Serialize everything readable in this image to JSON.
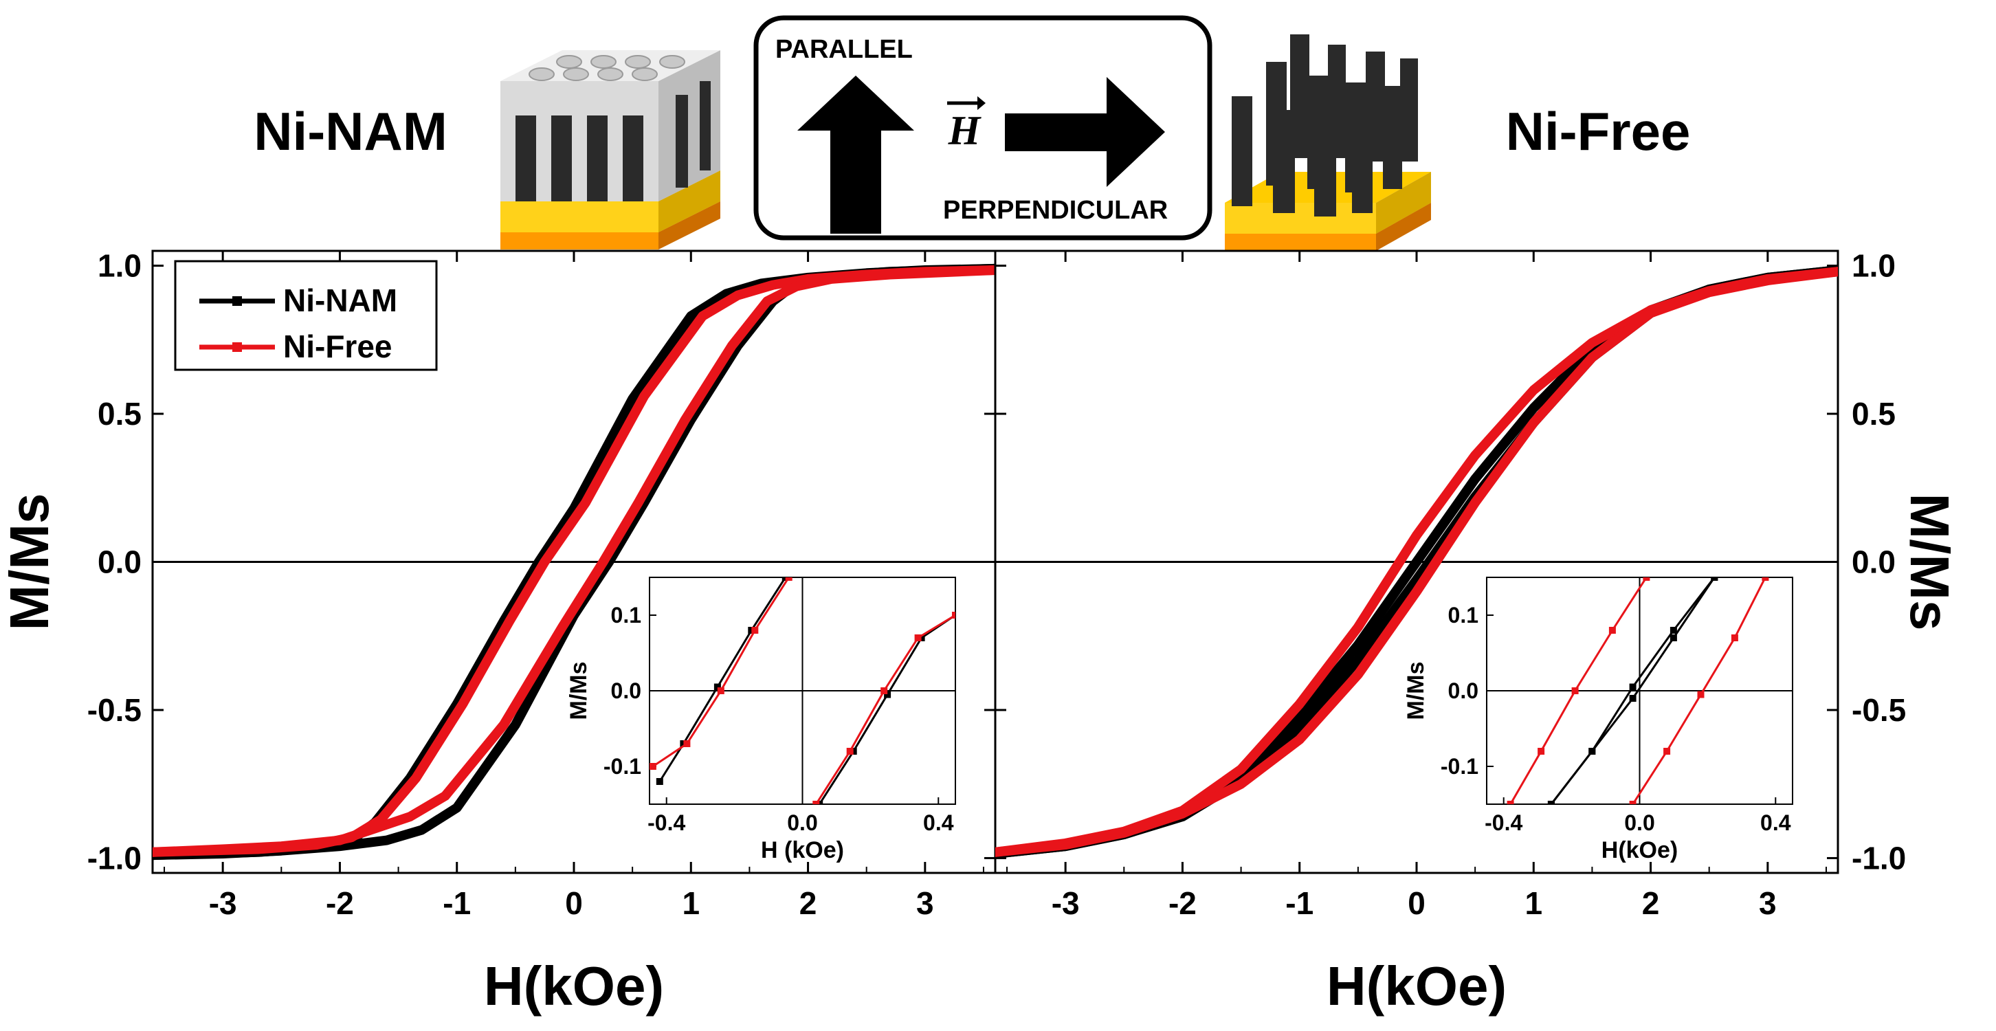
{
  "header": {
    "sample_left": "Ni-NAM",
    "sample_right": "Ni-Free",
    "arrow_parallel_label": "PARALLEL",
    "arrow_perpendicular_label": "PERPENDICULAR",
    "field_symbol": "H"
  },
  "colors": {
    "ni_nam": "#000000",
    "ni_free": "#e8141a",
    "membrane_white": "#d9d9d9",
    "nanowire_black": "#2a2a2a",
    "substrate_gold": "#ffcc00",
    "substrate_orange": "#ff8c00"
  },
  "legend": {
    "placement": "top-left of left panel",
    "entries": [
      "Ni-NAM",
      "Ni-Free"
    ]
  },
  "chart_data": [
    {
      "type": "line",
      "panel": "parallel",
      "xlabel": "H(kOe)",
      "ylabel": "M/Ms",
      "ylabel_side": "left",
      "xlim": [
        -3.6,
        3.6
      ],
      "ylim": [
        -1.05,
        1.05
      ],
      "x_ticks": [
        -3,
        -2,
        -1,
        0,
        1,
        2,
        3
      ],
      "y_ticks": [
        -1.0,
        -0.5,
        0.0,
        0.5,
        1.0
      ],
      "y_tick_labels": [
        "-1.0",
        "-0.5",
        "0.0",
        "0.5",
        "1.0"
      ],
      "series": [
        {
          "name": "Ni-NAM",
          "branches": [
            {
              "x": [
                3.6,
                3.0,
                2.5,
                2.0,
                1.6,
                1.3,
                1.0,
                0.5,
                0.0,
                -0.3,
                -0.6,
                -1.0,
                -1.4,
                -1.7,
                -1.9,
                -2.2,
                -2.7,
                -3.6
              ],
              "y": [
                0.99,
                0.985,
                0.975,
                0.96,
                0.94,
                0.905,
                0.83,
                0.55,
                0.18,
                0.0,
                -0.2,
                -0.48,
                -0.73,
                -0.88,
                -0.94,
                -0.965,
                -0.98,
                -0.99
              ]
            },
            {
              "x": [
                -3.6,
                -3.0,
                -2.5,
                -2.0,
                -1.6,
                -1.3,
                -1.0,
                -0.5,
                0.0,
                0.3,
                0.6,
                1.0,
                1.4,
                1.7,
                1.9,
                2.2,
                2.7,
                3.6
              ],
              "y": [
                -0.99,
                -0.985,
                -0.975,
                -0.96,
                -0.94,
                -0.905,
                -0.83,
                -0.55,
                -0.18,
                0.0,
                0.2,
                0.48,
                0.73,
                0.88,
                0.94,
                0.965,
                0.98,
                0.99
              ]
            }
          ]
        },
        {
          "name": "Ni-Free",
          "branches": [
            {
              "x": [
                3.6,
                3.0,
                2.5,
                2.0,
                1.7,
                1.4,
                1.1,
                0.6,
                0.1,
                -0.25,
                -0.55,
                -0.95,
                -1.35,
                -1.65,
                -1.9,
                -2.2,
                -2.7,
                -3.6
              ],
              "y": [
                0.985,
                0.98,
                0.97,
                0.955,
                0.935,
                0.9,
                0.83,
                0.56,
                0.2,
                0.0,
                -0.2,
                -0.48,
                -0.73,
                -0.87,
                -0.93,
                -0.955,
                -0.97,
                -0.98
              ]
            },
            {
              "x": [
                -3.6,
                -3.0,
                -2.5,
                -2.0,
                -1.7,
                -1.4,
                -1.1,
                -0.6,
                -0.1,
                0.25,
                0.55,
                0.95,
                1.35,
                1.65,
                1.9,
                2.2,
                2.7,
                3.6
              ],
              "y": [
                -0.98,
                -0.97,
                -0.96,
                -0.94,
                -0.9,
                -0.86,
                -0.79,
                -0.55,
                -0.22,
                0.0,
                0.2,
                0.48,
                0.73,
                0.88,
                0.93,
                0.955,
                0.97,
                0.985
              ]
            }
          ]
        }
      ],
      "inset": {
        "xlabel": "H (kOe)",
        "ylabel": "M/Ms",
        "xlim": [
          -0.45,
          0.45
        ],
        "ylim": [
          -0.15,
          0.15
        ],
        "x_ticks": [
          -0.4,
          0.0,
          0.4
        ],
        "x_tick_labels": [
          "-0.4",
          "0.0",
          "0.4"
        ],
        "y_ticks": [
          -0.1,
          0.0,
          0.1
        ],
        "y_tick_labels": [
          "-0.1",
          "0.0",
          "0.1"
        ],
        "series": [
          {
            "name": "Ni-NAM",
            "branches": [
              {
                "x": [
                  -0.05,
                  -0.15,
                  -0.25,
                  -0.35,
                  -0.42
                ],
                "y": [
                  0.15,
                  0.08,
                  0.005,
                  -0.07,
                  -0.12
                ]
              },
              {
                "x": [
                  0.05,
                  0.15,
                  0.25,
                  0.35,
                  0.45
                ],
                "y": [
                  -0.15,
                  -0.08,
                  -0.005,
                  0.07,
                  0.1
                ]
              }
            ]
          },
          {
            "name": "Ni-Free",
            "branches": [
              {
                "x": [
                  -0.04,
                  -0.14,
                  -0.24,
                  -0.34,
                  -0.44
                ],
                "y": [
                  0.15,
                  0.08,
                  0.0,
                  -0.07,
                  -0.1
                ]
              },
              {
                "x": [
                  0.04,
                  0.14,
                  0.24,
                  0.34,
                  0.45
                ],
                "y": [
                  -0.15,
                  -0.08,
                  0.0,
                  0.07,
                  0.1
                ]
              }
            ]
          }
        ]
      }
    },
    {
      "type": "line",
      "panel": "perpendicular",
      "xlabel": "H(kOe)",
      "ylabel": "M/Ms",
      "ylabel_side": "right",
      "xlim": [
        -3.6,
        3.6
      ],
      "ylim": [
        -1.05,
        1.05
      ],
      "x_ticks": [
        -3,
        -2,
        -1,
        0,
        1,
        2,
        3
      ],
      "y_ticks": [
        -1.0,
        -0.5,
        0.0,
        0.5,
        1.0
      ],
      "y_tick_labels": [
        "-1.0",
        "-0.5",
        "0.0",
        "0.5",
        "1.0"
      ],
      "series": [
        {
          "name": "Ni-NAM",
          "branches": [
            {
              "x": [
                3.6,
                3.0,
                2.5,
                2.0,
                1.5,
                1.0,
                0.5,
                0.0,
                -0.5,
                -1.0,
                -1.5,
                -2.0,
                -2.5,
                -3.0,
                -3.6
              ],
              "y": [
                0.985,
                0.96,
                0.92,
                0.85,
                0.72,
                0.52,
                0.28,
                0.0,
                -0.28,
                -0.52,
                -0.72,
                -0.85,
                -0.92,
                -0.96,
                -0.985
              ]
            },
            {
              "x": [
                -3.6,
                -3.0,
                -2.5,
                -2.0,
                -1.5,
                -1.0,
                -0.5,
                0.0,
                0.5,
                1.0,
                1.5,
                2.0,
                2.5,
                3.0,
                3.6
              ],
              "y": [
                -0.985,
                -0.96,
                -0.92,
                -0.86,
                -0.74,
                -0.56,
                -0.33,
                -0.06,
                0.22,
                0.47,
                0.69,
                0.84,
                0.92,
                0.96,
                0.985
              ]
            }
          ]
        },
        {
          "name": "Ni-Free",
          "branches": [
            {
              "x": [
                3.6,
                3.0,
                2.5,
                2.0,
                1.5,
                1.0,
                0.5,
                0.0,
                -0.5,
                -1.0,
                -1.5,
                -2.0,
                -2.5,
                -3.0,
                -3.6
              ],
              "y": [
                0.98,
                0.955,
                0.915,
                0.85,
                0.74,
                0.58,
                0.36,
                0.09,
                -0.22,
                -0.48,
                -0.7,
                -0.84,
                -0.91,
                -0.95,
                -0.98
              ]
            },
            {
              "x": [
                -3.6,
                -3.0,
                -2.5,
                -2.0,
                -1.5,
                -1.0,
                -0.5,
                0.0,
                0.5,
                1.0,
                1.5,
                2.0,
                2.5,
                3.0,
                3.6
              ],
              "y": [
                -0.98,
                -0.955,
                -0.915,
                -0.85,
                -0.75,
                -0.6,
                -0.38,
                -0.1,
                0.2,
                0.47,
                0.69,
                0.84,
                0.91,
                0.95,
                0.98
              ]
            }
          ]
        }
      ],
      "inset": {
        "xlabel": "H(kOe)",
        "ylabel": "M/Ms",
        "xlim": [
          -0.45,
          0.45
        ],
        "ylim": [
          -0.15,
          0.15
        ],
        "x_ticks": [
          -0.4,
          0.0,
          0.4
        ],
        "x_tick_labels": [
          "-0.4",
          "0.0",
          "0.4"
        ],
        "y_ticks": [
          -0.1,
          0.0,
          0.1
        ],
        "y_tick_labels": [
          "-0.1",
          "0.0",
          "0.1"
        ],
        "series": [
          {
            "name": "Ni-NAM",
            "branches": [
              {
                "x": [
                  0.22,
                  0.1,
                  -0.02,
                  -0.14,
                  -0.26
                ],
                "y": [
                  0.15,
                  0.08,
                  0.005,
                  -0.08,
                  -0.15
                ]
              },
              {
                "x": [
                  -0.26,
                  -0.14,
                  -0.02,
                  0.1,
                  0.22
                ],
                "y": [
                  -0.15,
                  -0.08,
                  -0.01,
                  0.07,
                  0.15
                ]
              }
            ]
          },
          {
            "name": "Ni-Free",
            "branches": [
              {
                "x": [
                  0.02,
                  -0.08,
                  -0.19,
                  -0.29,
                  -0.38
                ],
                "y": [
                  0.15,
                  0.08,
                  0.0,
                  -0.08,
                  -0.15
                ]
              },
              {
                "x": [
                  -0.02,
                  0.08,
                  0.18,
                  0.28,
                  0.37
                ],
                "y": [
                  -0.15,
                  -0.08,
                  -0.005,
                  0.07,
                  0.15
                ]
              }
            ]
          }
        ]
      }
    }
  ]
}
